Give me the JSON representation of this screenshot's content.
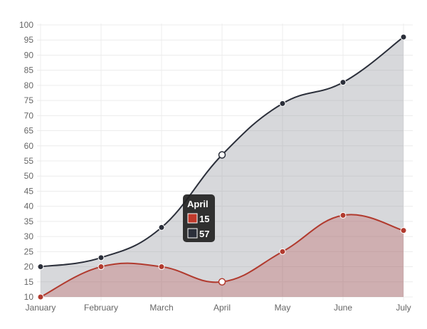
{
  "chart_data": {
    "type": "area",
    "categories": [
      "January",
      "February",
      "March",
      "April",
      "May",
      "June",
      "July"
    ],
    "series": [
      {
        "values": [
          20,
          23,
          33,
          57,
          74,
          81,
          96
        ],
        "color": "#2b2f3a",
        "fill": "rgba(151,153,161,0.38)"
      },
      {
        "values": [
          10,
          20,
          20,
          15,
          25,
          37,
          32
        ],
        "color": "#b13a2e",
        "fill": "rgba(190,80,80,0.30)"
      }
    ],
    "ylim": [
      10,
      100
    ],
    "y_ticks": [
      10,
      15,
      20,
      25,
      30,
      35,
      40,
      45,
      50,
      55,
      60,
      65,
      70,
      75,
      80,
      85,
      90,
      95,
      100
    ],
    "grid": true,
    "tooltip": {
      "title": "April",
      "items": [
        {
          "value": "15",
          "color": "#c0392b"
        },
        {
          "value": "57",
          "color": "#2b2f3a"
        }
      ]
    }
  }
}
